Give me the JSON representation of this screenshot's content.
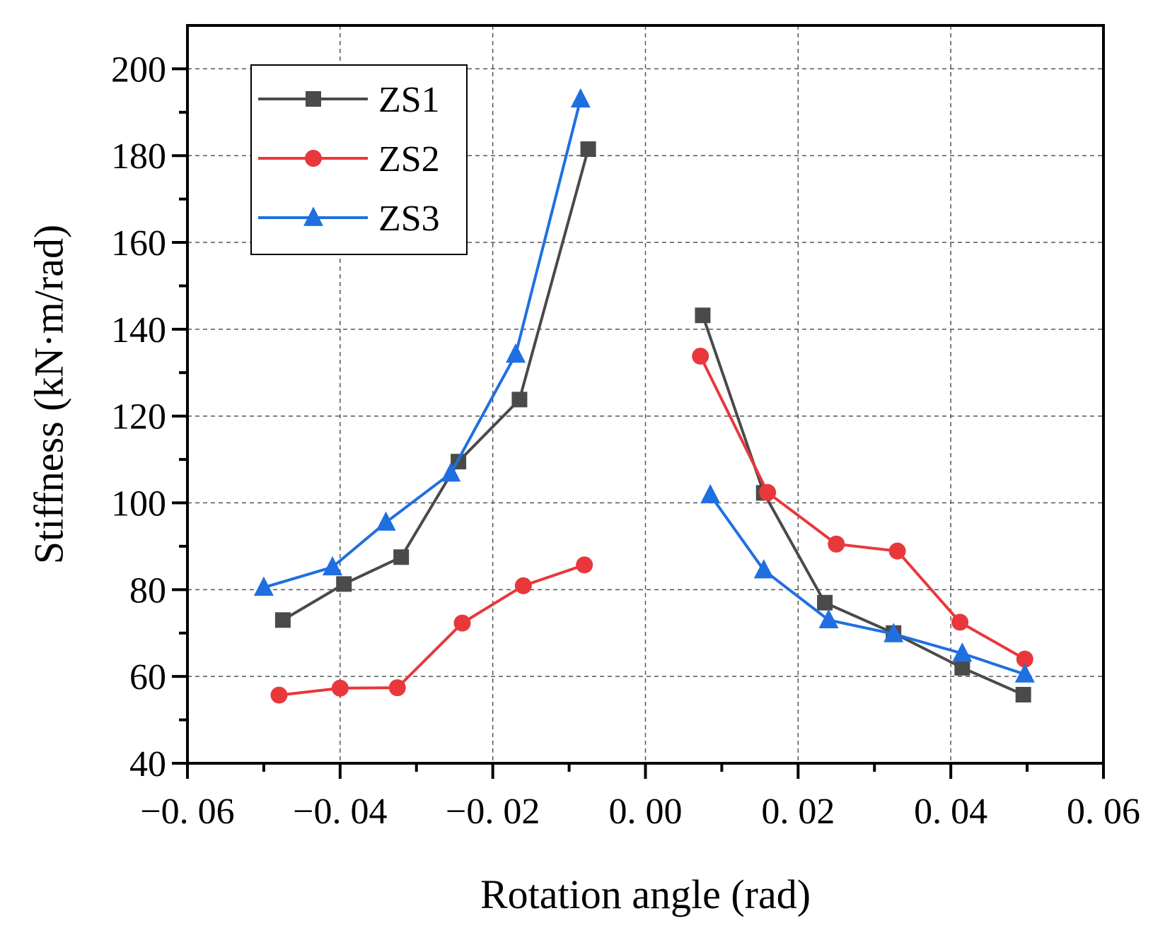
{
  "chart_data": {
    "type": "line",
    "title": "",
    "xlabel": "Rotation angle (rad)",
    "ylabel": "Stiffness (kN·m/rad)",
    "xlim": [
      -0.06,
      0.06
    ],
    "ylim": [
      40,
      210
    ],
    "grid": true,
    "legend_position": "top-left",
    "x_ticks": [
      -0.06,
      -0.04,
      -0.02,
      0.0,
      0.02,
      0.04,
      0.06
    ],
    "x_tick_labels": [
      "−0. 06",
      "−0. 04",
      "−0. 02",
      "0. 00",
      "0. 02",
      "0. 04",
      "0. 06"
    ],
    "y_ticks": [
      40,
      60,
      80,
      100,
      120,
      140,
      160,
      180,
      200
    ],
    "y_tick_labels": [
      "40",
      "60",
      "80",
      "100",
      "120",
      "140",
      "160",
      "180",
      "200"
    ],
    "series": [
      {
        "name": "ZS1",
        "color": "#4a4a4a",
        "marker": "square",
        "segments": [
          [
            [
              -0.0475,
              73
            ],
            [
              -0.0395,
              81.3
            ],
            [
              -0.032,
              87.5
            ],
            [
              -0.0245,
              109.5
            ],
            [
              -0.0165,
              123.8
            ],
            [
              -0.0075,
              181.5
            ]
          ],
          [
            [
              0.0075,
              143.2
            ],
            [
              0.0155,
              102.3
            ],
            [
              0.0235,
              77
            ],
            [
              0.0325,
              70
            ],
            [
              0.0415,
              62
            ],
            [
              0.0495,
              55.8
            ]
          ]
        ]
      },
      {
        "name": "ZS2",
        "color": "#e8383b",
        "marker": "circle",
        "segments": [
          [
            [
              -0.048,
              55.7
            ],
            [
              -0.04,
              57.3
            ],
            [
              -0.0325,
              57.4
            ],
            [
              -0.024,
              72.3
            ],
            [
              -0.016,
              80.9
            ],
            [
              -0.008,
              85.7
            ]
          ],
          [
            [
              0.0072,
              133.8
            ],
            [
              0.016,
              102.4
            ],
            [
              0.025,
              90.5
            ],
            [
              0.033,
              88.9
            ],
            [
              0.0412,
              72.5
            ],
            [
              0.0497,
              64
            ]
          ]
        ]
      },
      {
        "name": "ZS3",
        "color": "#1f6fe0",
        "marker": "triangle",
        "segments": [
          [
            [
              -0.05,
              80.5
            ],
            [
              -0.041,
              85.2
            ],
            [
              -0.034,
              95.5
            ],
            [
              -0.0255,
              106.8
            ],
            [
              -0.017,
              134.2
            ],
            [
              -0.0085,
              193
            ]
          ],
          [
            [
              0.0085,
              101.8
            ],
            [
              0.0155,
              84.5
            ],
            [
              0.024,
              73
            ],
            [
              0.0325,
              69.8
            ],
            [
              0.0415,
              65.3
            ],
            [
              0.0497,
              60.5
            ]
          ]
        ]
      }
    ]
  }
}
